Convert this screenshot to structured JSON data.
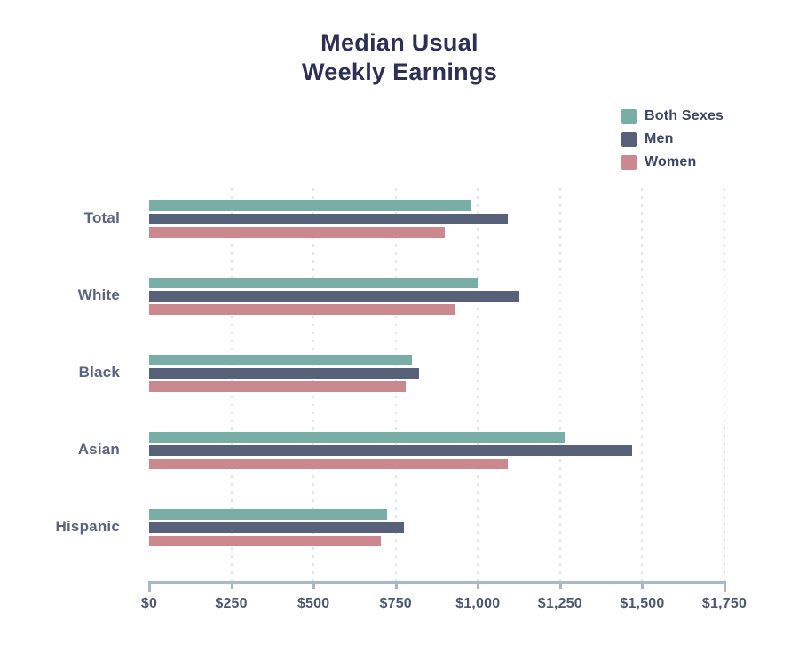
{
  "title": {
    "line1": "Median Usual",
    "line2": "Weekly Earnings"
  },
  "legend": [
    {
      "label": "Both Sexes",
      "color": "#79aea7"
    },
    {
      "label": "Men",
      "color": "#57617a"
    },
    {
      "label": "Women",
      "color": "#cb888e"
    }
  ],
  "colors": {
    "title_text": "#2d3054",
    "legend_text": "#3c4565",
    "category_text": "#5a6380",
    "tick_text": "#4c5775",
    "axis_line": "#a9b7cb",
    "gridline": "#e2e6f0",
    "background": "#ffffff"
  },
  "chart_data": {
    "type": "bar",
    "orientation": "horizontal",
    "title": "Median Usual Weekly Earnings",
    "categories": [
      "Total",
      "White",
      "Black",
      "Asian",
      "Hispanic"
    ],
    "series": [
      {
        "name": "Both Sexes",
        "color": "#79aea7",
        "values": [
          980,
          1000,
          800,
          1265,
          725
        ]
      },
      {
        "name": "Men",
        "color": "#57617a",
        "values": [
          1090,
          1125,
          820,
          1470,
          775
        ]
      },
      {
        "name": "Women",
        "color": "#cb888e",
        "values": [
          900,
          930,
          780,
          1090,
          705
        ]
      }
    ],
    "xlabel": "",
    "ylabel": "",
    "xlim": [
      0,
      1750
    ],
    "x_tick_step": 250,
    "x_ticks": [
      "$0",
      "$250",
      "$500",
      "$750",
      "$1,000",
      "$1,250",
      "$1,500",
      "$1,750"
    ],
    "grid": "vertical-dotted",
    "legend_position": "top-right"
  }
}
